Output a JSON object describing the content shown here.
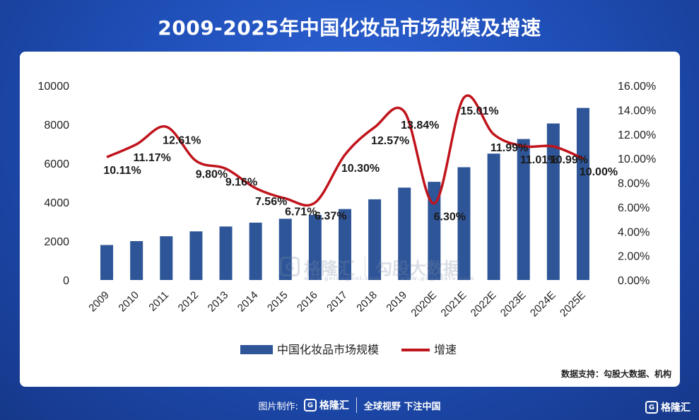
{
  "title": "2009-2025年中国化妆品市场规模及增速",
  "source": "数据支持：勾股大数据、机构",
  "watermark": {
    "brand": "格隆汇",
    "brand2": "勾股大数据",
    "url": "www.gelonghui.com",
    "url2": "www.gogudata.com",
    "logo_glyph": "G"
  },
  "footer": {
    "made_by": "图片制作:",
    "brand": "格隆汇",
    "slogan": "全球视野 下注中国",
    "logo_glyph": "G"
  },
  "corner_brand": "格隆汇",
  "corner_glyph": "G",
  "chart_data": {
    "type": "bar",
    "categories": [
      "2009",
      "2010",
      "2011",
      "2012",
      "2013",
      "2014",
      "2015",
      "2016",
      "2017",
      "2018",
      "2019",
      "2020E",
      "2021E",
      "2022E",
      "2023E",
      "2024E",
      "2025E"
    ],
    "series": [
      {
        "name": "中国化妆品市场规模",
        "type": "bar",
        "axis": "left",
        "color": "#2e5597",
        "values": [
          1800,
          2000,
          2250,
          2500,
          2750,
          2950,
          3150,
          3350,
          3650,
          4150,
          4750,
          5050,
          5800,
          6500,
          7250,
          8050,
          8850
        ]
      },
      {
        "name": "增速",
        "type": "line",
        "axis": "right",
        "color": "#c0141c",
        "values": [
          10.11,
          11.17,
          12.61,
          9.8,
          9.16,
          7.56,
          6.71,
          6.37,
          10.3,
          12.57,
          13.84,
          6.3,
          15.01,
          11.99,
          11.01,
          10.99,
          10.0
        ],
        "labels": [
          "10.11%",
          "11.17%",
          "12.61%",
          "9.80%",
          "9.16%",
          "7.56%",
          "6.71%",
          "6.37%",
          "10.30%",
          "12.57%",
          "13.84%",
          "6.30%",
          "15.01%",
          "11.99%",
          "11.01%",
          "10.99%",
          "10.00%"
        ]
      }
    ],
    "y_left": {
      "min": 0,
      "max": 10000,
      "ticks": [
        "0",
        "2000",
        "4000",
        "6000",
        "8000",
        "10000"
      ]
    },
    "y_right": {
      "min": 0,
      "max": 16,
      "ticks": [
        "0.00%",
        "2.00%",
        "4.00%",
        "6.00%",
        "8.00%",
        "10.00%",
        "12.00%",
        "14.00%",
        "16.00%"
      ]
    },
    "legend_position": "bottom",
    "grid": false
  }
}
